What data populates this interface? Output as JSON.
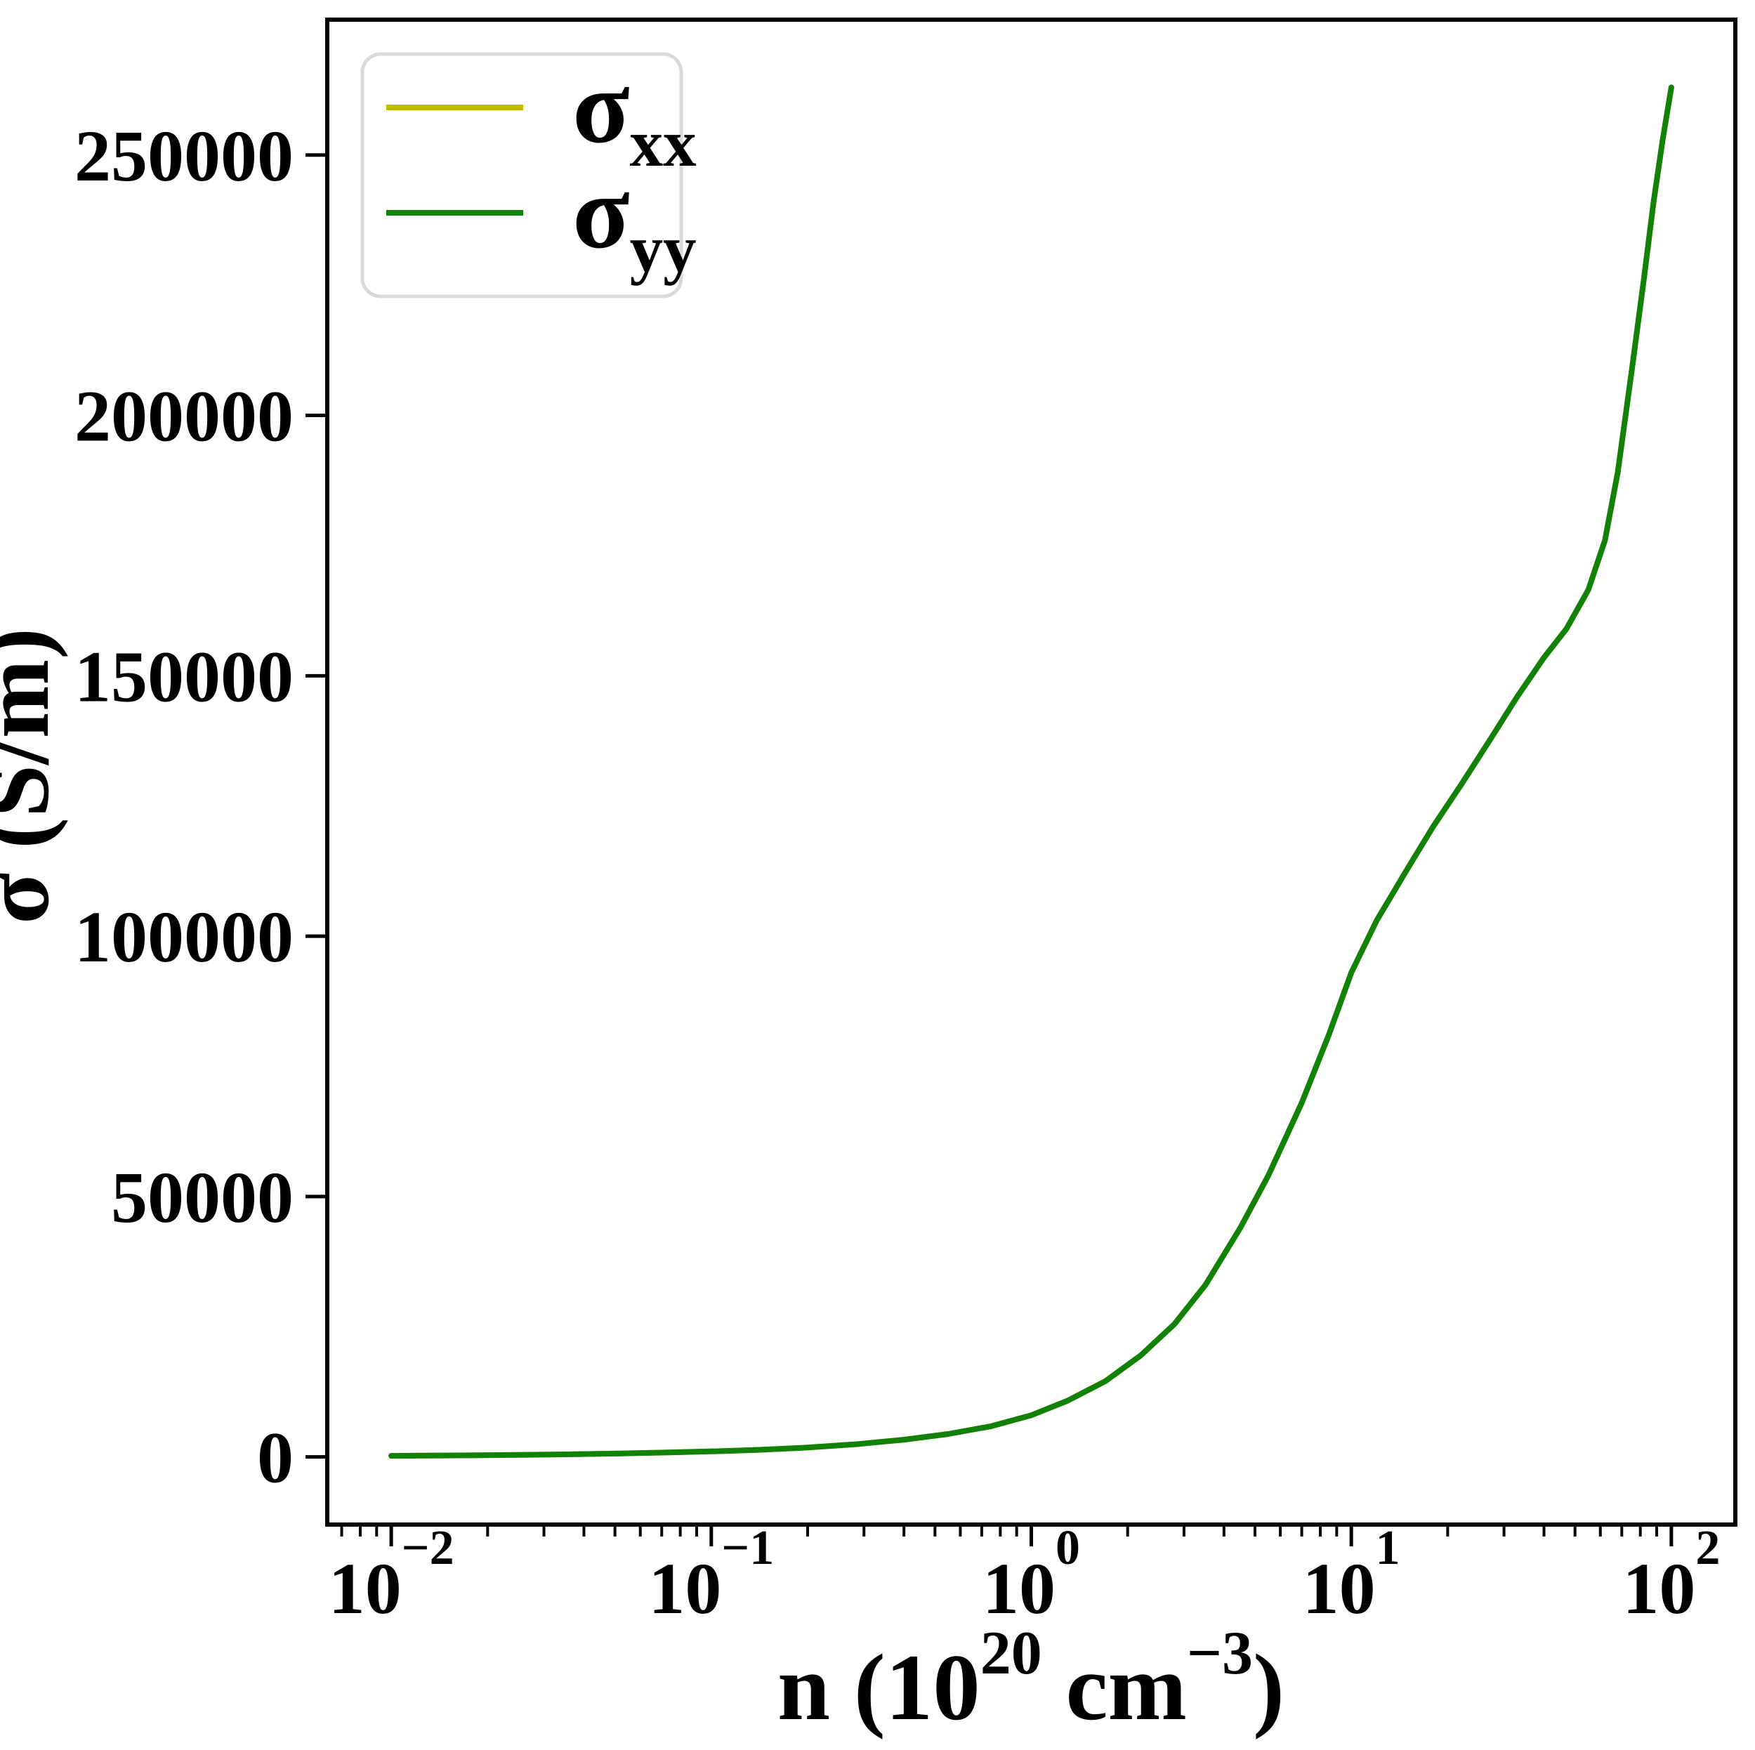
{
  "figure": {
    "background": "#ffffff",
    "spine_color": "#000000"
  },
  "chart_data": {
    "type": "line",
    "title": "",
    "xlabel_parts": [
      {
        "t": "n (10",
        "sup": false
      },
      {
        "t": "20",
        "sup": true
      },
      {
        "t": " cm",
        "sup": false
      },
      {
        "t": "−3",
        "sup": true
      },
      {
        "t": ")",
        "sup": false
      }
    ],
    "ylabel": "σ (S/m)",
    "x_scale": "log",
    "xlim_log10": [
      -2.2,
      2.2
    ],
    "ylim": [
      -13000,
      276000
    ],
    "grid": false,
    "x_major_ticks": [
      {
        "value": 0.01,
        "base": "10",
        "exponent": "−2"
      },
      {
        "value": 0.1,
        "base": "10",
        "exponent": "−1"
      },
      {
        "value": 1,
        "base": "10",
        "exponent": "0"
      },
      {
        "value": 10,
        "base": "10",
        "exponent": "1"
      },
      {
        "value": 100,
        "base": "10",
        "exponent": "2"
      }
    ],
    "x_minor_subs": [
      2,
      3,
      4,
      5,
      6,
      7,
      8,
      9
    ],
    "y_ticks": [
      {
        "value": 0,
        "label": "0"
      },
      {
        "value": 50000,
        "label": "50000"
      },
      {
        "value": 100000,
        "label": "100000"
      },
      {
        "value": 150000,
        "label": "150000"
      },
      {
        "value": 200000,
        "label": "200000"
      },
      {
        "value": 250000,
        "label": "250000"
      }
    ],
    "legend": {
      "position": "upper left",
      "border_color": "#d9d9d9",
      "background": "#ffffff",
      "entries": [
        {
          "symbol": "σ",
          "subscript": "xx",
          "color": "#c3ba00"
        },
        {
          "symbol": "σ",
          "subscript": "yy",
          "color": "#128108"
        }
      ]
    },
    "series": [
      {
        "name": "sigma_xx",
        "color": "#c3ba00",
        "points": [
          [
            0.01,
            200
          ],
          [
            0.013,
            240
          ],
          [
            0.018,
            300
          ],
          [
            0.025,
            380
          ],
          [
            0.035,
            490
          ],
          [
            0.05,
            640
          ],
          [
            0.07,
            820
          ],
          [
            0.1,
            1050
          ],
          [
            0.14,
            1350
          ],
          [
            0.2,
            1800
          ],
          [
            0.28,
            2400
          ],
          [
            0.4,
            3300
          ],
          [
            0.55,
            4400
          ],
          [
            0.75,
            5900
          ],
          [
            1,
            8000
          ],
          [
            1.3,
            10800
          ],
          [
            1.7,
            14500
          ],
          [
            2.2,
            19500
          ],
          [
            2.8,
            25500
          ],
          [
            3.5,
            33000
          ],
          [
            4.5,
            44000
          ],
          [
            5.5,
            54000
          ],
          [
            7,
            68000
          ],
          [
            8.5,
            81000
          ],
          [
            10,
            93000
          ],
          [
            12,
            103000
          ],
          [
            15,
            113000
          ],
          [
            18,
            121000
          ],
          [
            22,
            129000
          ],
          [
            27,
            137500
          ],
          [
            33,
            146000
          ],
          [
            40,
            153500
          ],
          [
            47,
            159000
          ],
          [
            55,
            166500
          ],
          [
            62,
            176000
          ],
          [
            68,
            189000
          ],
          [
            75,
            208000
          ],
          [
            82,
            226000
          ],
          [
            88,
            241000
          ],
          [
            94,
            253000
          ],
          [
            100,
            263000
          ]
        ]
      },
      {
        "name": "sigma_yy",
        "color": "#128108",
        "points": [
          [
            0.01,
            200
          ],
          [
            0.013,
            240
          ],
          [
            0.018,
            300
          ],
          [
            0.025,
            380
          ],
          [
            0.035,
            490
          ],
          [
            0.05,
            640
          ],
          [
            0.07,
            820
          ],
          [
            0.1,
            1050
          ],
          [
            0.14,
            1350
          ],
          [
            0.2,
            1800
          ],
          [
            0.28,
            2400
          ],
          [
            0.4,
            3300
          ],
          [
            0.55,
            4400
          ],
          [
            0.75,
            5900
          ],
          [
            1,
            8000
          ],
          [
            1.3,
            10800
          ],
          [
            1.7,
            14500
          ],
          [
            2.2,
            19500
          ],
          [
            2.8,
            25500
          ],
          [
            3.5,
            33000
          ],
          [
            4.5,
            44000
          ],
          [
            5.5,
            54000
          ],
          [
            7,
            68000
          ],
          [
            8.5,
            81000
          ],
          [
            10,
            93000
          ],
          [
            12,
            103000
          ],
          [
            15,
            113000
          ],
          [
            18,
            121000
          ],
          [
            22,
            129000
          ],
          [
            27,
            137500
          ],
          [
            33,
            146000
          ],
          [
            40,
            153500
          ],
          [
            47,
            159000
          ],
          [
            55,
            166500
          ],
          [
            62,
            176000
          ],
          [
            68,
            189000
          ],
          [
            75,
            208000
          ],
          [
            82,
            226000
          ],
          [
            88,
            241000
          ],
          [
            94,
            253000
          ],
          [
            100,
            263000
          ]
        ]
      }
    ]
  }
}
